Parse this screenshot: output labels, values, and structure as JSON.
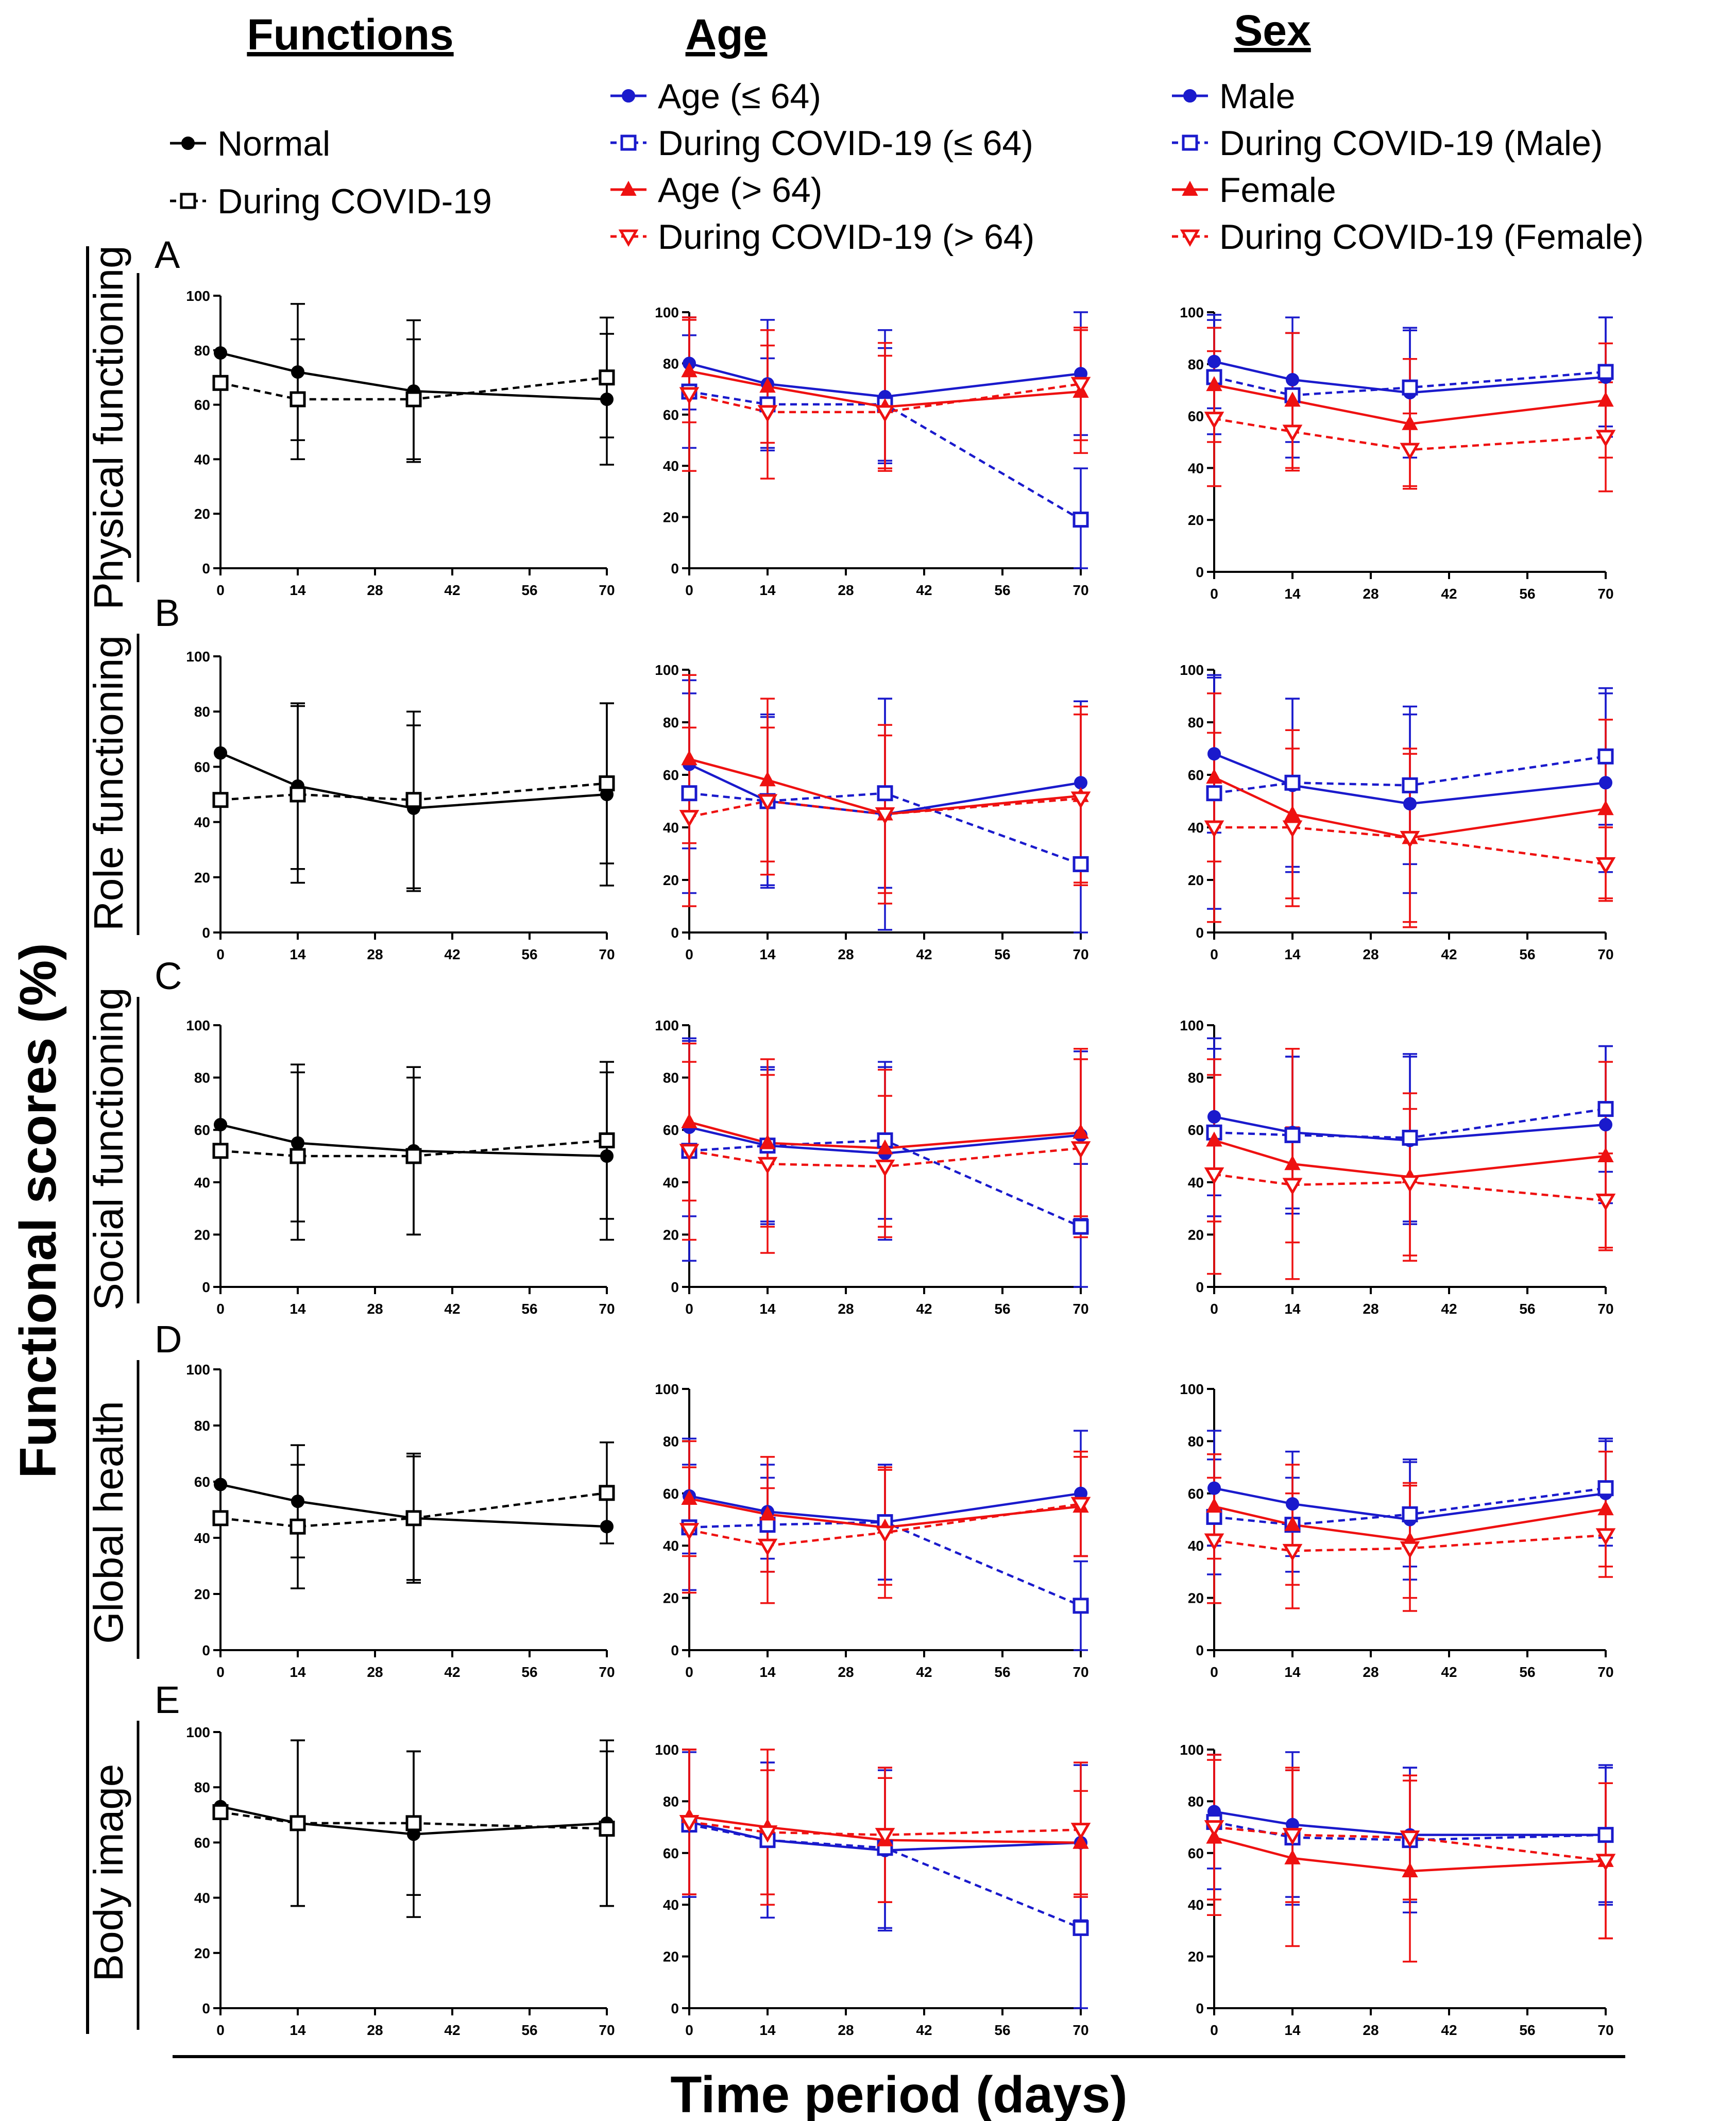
{
  "figure": {
    "y_axis_title": "Functional scores (%)",
    "x_axis_title": "Time period (days)"
  },
  "columns": [
    {
      "id": "functions",
      "title": "Functions",
      "legend": [
        {
          "label": "Normal",
          "color": "#000000",
          "marker": "filled-circle",
          "line": "solid"
        },
        {
          "label": "During COVID-19",
          "color": "#000000",
          "marker": "open-square",
          "line": "dashed"
        }
      ]
    },
    {
      "id": "age",
      "title": "Age",
      "legend": [
        {
          "label": "Age (≤ 64)",
          "color": "#1a1acc",
          "marker": "filled-circle",
          "line": "solid"
        },
        {
          "label": "During COVID-19 (≤ 64)",
          "color": "#1a1acc",
          "marker": "open-square",
          "line": "dashed"
        },
        {
          "label": "Age (> 64)",
          "color": "#ee1111",
          "marker": "filled-triangle",
          "line": "solid"
        },
        {
          "label": "During COVID-19 (> 64)",
          "color": "#ee1111",
          "marker": "open-down-triangle",
          "line": "dashed"
        }
      ]
    },
    {
      "id": "sex",
      "title": "Sex",
      "legend": [
        {
          "label": "Male",
          "color": "#1a1acc",
          "marker": "filled-circle",
          "line": "solid"
        },
        {
          "label": "During COVID-19 (Male)",
          "color": "#1a1acc",
          "marker": "open-square",
          "line": "dashed"
        },
        {
          "label": "Female",
          "color": "#ee1111",
          "marker": "filled-triangle",
          "line": "solid"
        },
        {
          "label": "During COVID-19 (Female)",
          "color": "#ee1111",
          "marker": "open-down-triangle",
          "line": "dashed"
        }
      ]
    }
  ],
  "rows": [
    {
      "letter": "A",
      "label": "Physical functioning"
    },
    {
      "letter": "B",
      "label": "Role functioning"
    },
    {
      "letter": "C",
      "label": "Social functioning"
    },
    {
      "letter": "D",
      "label": "Global health"
    },
    {
      "letter": "E",
      "label": "Body image"
    }
  ],
  "chart_data": {
    "type": "line",
    "title": "",
    "xlabel": "Time period (days)",
    "ylabel": "Functional scores (%)",
    "x": [
      0,
      14,
      35,
      70
    ],
    "xlim": [
      0,
      70
    ],
    "ylim": [
      0,
      100
    ],
    "x_ticks": [
      0,
      14,
      28,
      42,
      56,
      70
    ],
    "y_ticks": [
      0,
      20,
      40,
      60,
      80,
      100
    ],
    "grid": false,
    "panels": [
      {
        "row": "A",
        "column": "functions",
        "series": [
          {
            "name": "Normal",
            "values": [
              79,
              72,
              65,
              62
            ],
            "err": [
              0,
              25,
              26,
              24
            ]
          },
          {
            "name": "During COVID-19",
            "values": [
              68,
              62,
              62,
              70
            ],
            "err": [
              0,
              22,
              22,
              22
            ]
          }
        ]
      },
      {
        "row": "A",
        "column": "age",
        "series": [
          {
            "name": "Age (≤ 64)",
            "values": [
              80,
              72,
              67,
              76
            ],
            "err": [
              18,
              25,
              26,
              24
            ]
          },
          {
            "name": "During COVID-19 (≤ 64)",
            "values": [
              69,
              64,
              64,
              19
            ],
            "err": [
              22,
              18,
              22,
              20
            ]
          },
          {
            "name": "Age (> 64)",
            "values": [
              77,
              71,
              63,
              69
            ],
            "err": [
              20,
              22,
              25,
              24
            ]
          },
          {
            "name": "During COVID-19 (> 64)",
            "values": [
              68,
              61,
              61,
              72
            ],
            "err": [
              30,
              26,
              22,
              22
            ]
          }
        ]
      },
      {
        "row": "A",
        "column": "sex",
        "series": [
          {
            "name": "Male",
            "values": [
              81,
              74,
              69,
              75
            ],
            "err": [
              18,
              24,
              25,
              23
            ]
          },
          {
            "name": "During COVID-19 (Male)",
            "values": [
              75,
              68,
              71,
              77
            ],
            "err": [
              22,
              24,
              22,
              21
            ]
          },
          {
            "name": "Female",
            "values": [
              72,
              66,
              57,
              66
            ],
            "err": [
              22,
              26,
              25,
              22
            ]
          },
          {
            "name": "During COVID-19 (Female)",
            "values": [
              59,
              54,
              47,
              52
            ],
            "err": [
              26,
              15,
              14,
              21
            ]
          }
        ]
      },
      {
        "row": "B",
        "column": "functions",
        "series": [
          {
            "name": "Normal",
            "values": [
              65,
              53,
              45,
              50
            ],
            "err": [
              0,
              30,
              30,
              33
            ]
          },
          {
            "name": "During COVID-19",
            "values": [
              48,
              50,
              48,
              54
            ],
            "err": [
              0,
              32,
              32,
              29
            ]
          }
        ]
      },
      {
        "row": "B",
        "column": "age",
        "series": [
          {
            "name": "Age (≤ 64)",
            "values": [
              64,
              50,
              45,
              57
            ],
            "err": [
              32,
              33,
              44,
              31
            ]
          },
          {
            "name": "During COVID-19 (≤ 64)",
            "values": [
              53,
              50,
              53,
              26
            ],
            "err": [
              38,
              32,
              36,
              26
            ]
          },
          {
            "name": "Age (> 64)",
            "values": [
              66,
              58,
              45,
              52
            ],
            "err": [
              32,
              31,
              30,
              34
            ]
          },
          {
            "name": "During COVID-19 (> 64)",
            "values": [
              44,
              50,
              45,
              51
            ],
            "err": [
              34,
              28,
              34,
              32
            ]
          }
        ]
      },
      {
        "row": "B",
        "column": "sex",
        "series": [
          {
            "name": "Male",
            "values": [
              68,
              56,
              49,
              57
            ],
            "err": [
              30,
              33,
              34,
              34
            ]
          },
          {
            "name": "During COVID-19 (Male)",
            "values": [
              53,
              57,
              56,
              67
            ],
            "err": [
              44,
              32,
              30,
              26
            ]
          },
          {
            "name": "Female",
            "values": [
              59,
              45,
              36,
              47
            ],
            "err": [
              32,
              32,
              34,
              34
            ]
          },
          {
            "name": "During COVID-19 (Female)",
            "values": [
              40,
              40,
              36,
              26
            ],
            "err": [
              36,
              30,
              32,
              14
            ]
          }
        ]
      },
      {
        "row": "C",
        "column": "functions",
        "series": [
          {
            "name": "Normal",
            "values": [
              62,
              55,
              52,
              50
            ],
            "err": [
              0,
              30,
              32,
              32
            ]
          },
          {
            "name": "During COVID-19",
            "values": [
              52,
              50,
              50,
              56
            ],
            "err": [
              0,
              32,
              30,
              30
            ]
          }
        ]
      },
      {
        "row": "C",
        "column": "age",
        "series": [
          {
            "name": "Age (≤ 64)",
            "values": [
              61,
              54,
              51,
              58
            ],
            "err": [
              34,
              29,
              33,
              32
            ]
          },
          {
            "name": "During COVID-19 (≤ 64)",
            "values": [
              52,
              54,
              56,
              23
            ],
            "err": [
              42,
              30,
              30,
              24
            ]
          },
          {
            "name": "Age (> 64)",
            "values": [
              63,
              55,
              53,
              59
            ],
            "err": [
              30,
              32,
              30,
              32
            ]
          },
          {
            "name": "During COVID-19 (> 64)",
            "values": [
              52,
              47,
              46,
              53
            ],
            "err": [
              34,
              34,
              27,
              34
            ]
          }
        ]
      },
      {
        "row": "C",
        "column": "sex",
        "series": [
          {
            "name": "Male",
            "values": [
              65,
              59,
              56,
              62
            ],
            "err": [
              30,
              29,
              32,
              30
            ]
          },
          {
            "name": "During COVID-19 (Male)",
            "values": [
              59,
              58,
              57,
              68
            ],
            "err": [
              32,
              30,
              32,
              24
            ]
          },
          {
            "name": "Female",
            "values": [
              56,
              47,
              42,
              50
            ],
            "err": [
              31,
              44,
              32,
              36
            ]
          },
          {
            "name": "During COVID-19 (Female)",
            "values": [
              43,
              39,
              40,
              33
            ],
            "err": [
              38,
              22,
              28,
              18
            ]
          }
        ]
      },
      {
        "row": "D",
        "column": "functions",
        "series": [
          {
            "name": "Normal",
            "values": [
              59,
              53,
              47,
              44
            ],
            "err": [
              0,
              20,
              22,
              0
            ]
          },
          {
            "name": "During COVID-19",
            "values": [
              47,
              44,
              47,
              56
            ],
            "err": [
              0,
              22,
              23,
              18
            ]
          }
        ]
      },
      {
        "row": "D",
        "column": "age",
        "series": [
          {
            "name": "Age (≤ 64)",
            "values": [
              59,
              53,
              49,
              60
            ],
            "err": [
              22,
              18,
              22,
              24
            ]
          },
          {
            "name": "During COVID-19 (≤ 64)",
            "values": [
              47,
              48,
              49,
              17
            ],
            "err": [
              24,
              18,
              22,
              17
            ]
          },
          {
            "name": "Age (> 64)",
            "values": [
              58,
              52,
              47,
              55
            ],
            "err": [
              22,
              22,
              22,
              19
            ]
          },
          {
            "name": "During COVID-19 (> 64)",
            "values": [
              46,
              40,
              45,
              56
            ],
            "err": [
              24,
              22,
              25,
              20
            ]
          }
        ]
      },
      {
        "row": "D",
        "column": "sex",
        "series": [
          {
            "name": "Male",
            "values": [
              62,
              56,
              50,
              60
            ],
            "err": [
              22,
              20,
              23,
              20
            ]
          },
          {
            "name": "During COVID-19 (Male)",
            "values": [
              51,
              48,
              52,
              62
            ],
            "err": [
              22,
              18,
              20,
              19
            ]
          },
          {
            "name": "Female",
            "values": [
              55,
              48,
              42,
              54
            ],
            "err": [
              20,
              23,
              22,
              22
            ]
          },
          {
            "name": "During COVID-19 (Female)",
            "values": [
              42,
              38,
              39,
              44
            ],
            "err": [
              24,
              22,
              24,
              16
            ]
          }
        ]
      },
      {
        "row": "E",
        "column": "functions",
        "series": [
          {
            "name": "Normal",
            "values": [
              73,
              67,
              63,
              67
            ],
            "err": [
              0,
              30,
              30,
              30
            ]
          },
          {
            "name": "During COVID-19",
            "values": [
              71,
              67,
              67,
              65
            ],
            "err": [
              0,
              30,
              26,
              28
            ]
          }
        ]
      },
      {
        "row": "E",
        "column": "age",
        "series": [
          {
            "name": "Age (≤ 64)",
            "values": [
              72,
              65,
              61,
              64
            ],
            "err": [
              28,
              30,
              31,
              30
            ]
          },
          {
            "name": "During COVID-19 (≤ 64)",
            "values": [
              71,
              65,
              62,
              31
            ],
            "err": [
              28,
              30,
              31,
              31
            ]
          },
          {
            "name": "Age (> 64)",
            "values": [
              74,
              70,
              65,
              64
            ],
            "err": [
              30,
              30,
              24,
              20
            ]
          },
          {
            "name": "During COVID-19 (> 64)",
            "values": [
              72,
              68,
              67,
              69
            ],
            "err": [
              28,
              24,
              26,
              26
            ]
          }
        ]
      },
      {
        "row": "E",
        "column": "sex",
        "series": [
          {
            "name": "Male",
            "values": [
              76,
              71,
              67,
              67
            ],
            "err": [
              22,
              28,
              26,
              26
            ]
          },
          {
            "name": "During COVID-19 (Male)",
            "values": [
              72,
              66,
              65,
              67
            ],
            "err": [
              26,
              26,
              28,
              27
            ]
          },
          {
            "name": "Female",
            "values": [
              66,
              58,
              53,
              57
            ],
            "err": [
              30,
              34,
              35,
              30
            ]
          },
          {
            "name": "During COVID-19 (Female)",
            "values": [
              70,
              67,
              66,
              57
            ],
            "err": [
              28,
              26,
              24,
              30
            ]
          }
        ]
      }
    ]
  }
}
